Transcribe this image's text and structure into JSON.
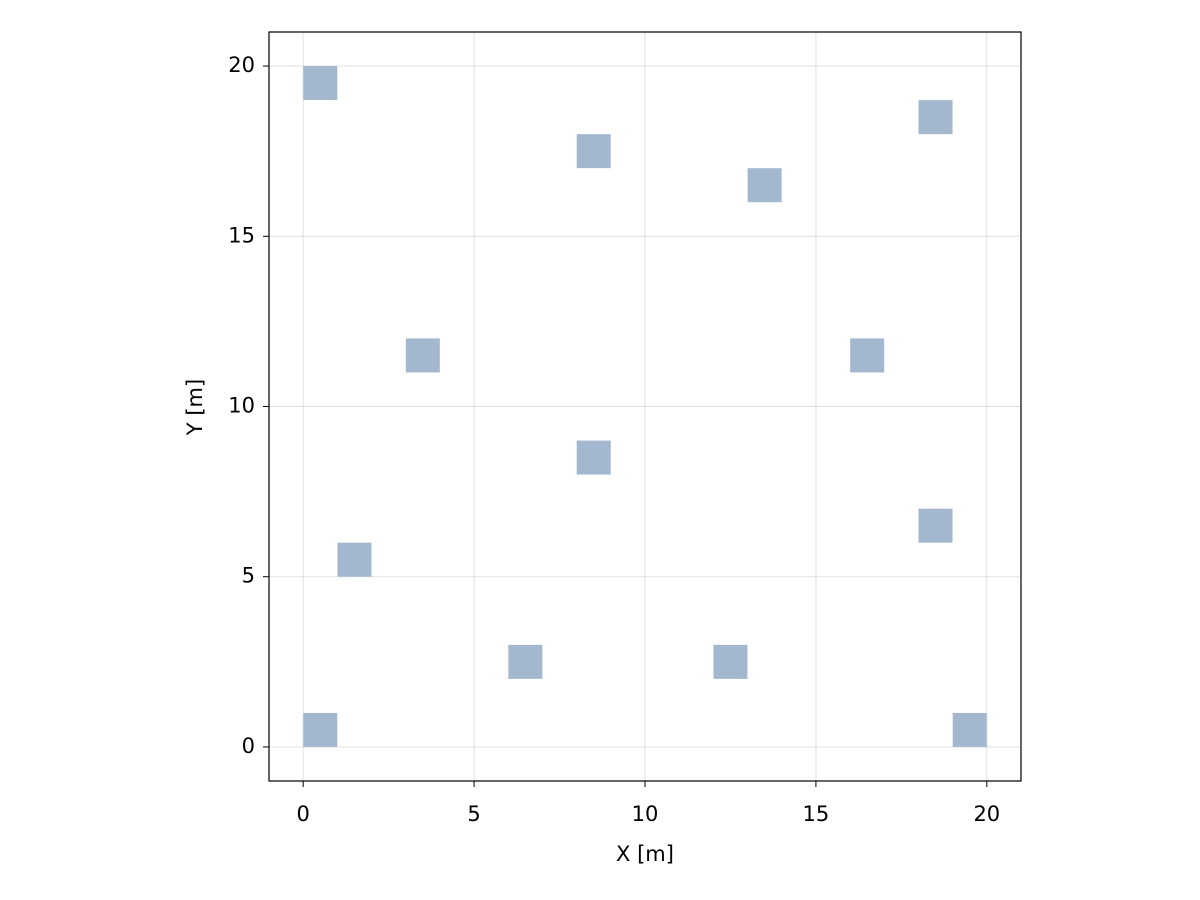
{
  "chart_data": {
    "type": "scatter",
    "marker": "square",
    "color": "#a3b7cf",
    "xlabel": "X [m]",
    "ylabel": "Y [m]",
    "xlim": [
      -1,
      21
    ],
    "ylim": [
      -1,
      21
    ],
    "xticks": [
      0,
      5,
      10,
      15,
      20
    ],
    "yticks": [
      0,
      5,
      10,
      15,
      20
    ],
    "grid": true,
    "x": [
      0.5,
      8.5,
      13.5,
      18.5,
      3.5,
      16.5,
      8.5,
      18.5,
      1.5,
      6.5,
      12.5,
      0.5,
      19.5
    ],
    "values": [
      19.5,
      17.5,
      16.5,
      18.5,
      11.5,
      11.5,
      8.5,
      6.5,
      5.5,
      2.5,
      2.5,
      0.5,
      0.5
    ]
  }
}
